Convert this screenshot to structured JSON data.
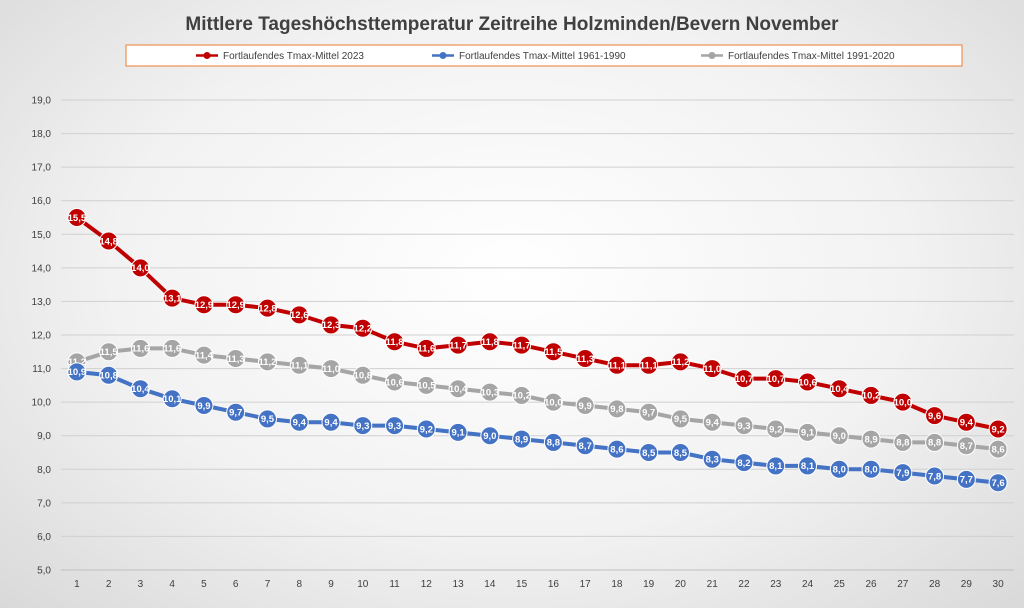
{
  "chart_data": {
    "type": "line",
    "title": "Mittlere Tageshöchsttemperatur Zeitreihe Holzminden/Bevern November",
    "xlabel": "",
    "ylabel": "",
    "ylim": [
      5.0,
      19.0
    ],
    "ystep": 1.0,
    "x": [
      1,
      2,
      3,
      4,
      5,
      6,
      7,
      8,
      9,
      10,
      11,
      12,
      13,
      14,
      15,
      16,
      17,
      18,
      19,
      20,
      21,
      22,
      23,
      24,
      25,
      26,
      27,
      28,
      29,
      30
    ],
    "grid": true,
    "legend_position": "top",
    "series": [
      {
        "name": "Fortlaufendes Tmax-Mittel 2023",
        "color": "#c00000",
        "values": [
          15.5,
          14.8,
          14.0,
          13.1,
          12.9,
          12.9,
          12.8,
          12.6,
          12.3,
          12.2,
          11.8,
          11.6,
          11.7,
          11.8,
          11.7,
          11.5,
          11.3,
          11.1,
          11.1,
          11.2,
          11.0,
          10.7,
          10.7,
          10.6,
          10.4,
          10.2,
          10.0,
          9.6,
          9.4,
          9.2
        ]
      },
      {
        "name": "Fortlaufendes Tmax-Mittel 1961-1990",
        "color": "#4472c4",
        "values": [
          10.9,
          10.8,
          10.4,
          10.1,
          9.9,
          9.7,
          9.5,
          9.4,
          9.4,
          9.3,
          9.3,
          9.2,
          9.1,
          9.0,
          8.9,
          8.8,
          8.7,
          8.6,
          8.5,
          8.5,
          8.3,
          8.2,
          8.1,
          8.1,
          8.0,
          8.0,
          7.9,
          7.8,
          7.7,
          7.6
        ]
      },
      {
        "name": "Fortlaufendes Tmax-Mittel 1991-2020",
        "color": "#a5a5a5",
        "values": [
          11.2,
          11.5,
          11.6,
          11.6,
          11.4,
          11.3,
          11.2,
          11.1,
          11.0,
          10.8,
          10.6,
          10.5,
          10.4,
          10.3,
          10.2,
          10.0,
          9.9,
          9.8,
          9.7,
          9.5,
          9.4,
          9.3,
          9.2,
          9.1,
          9.0,
          8.9,
          8.8,
          8.8,
          8.7,
          8.6
        ]
      }
    ]
  }
}
